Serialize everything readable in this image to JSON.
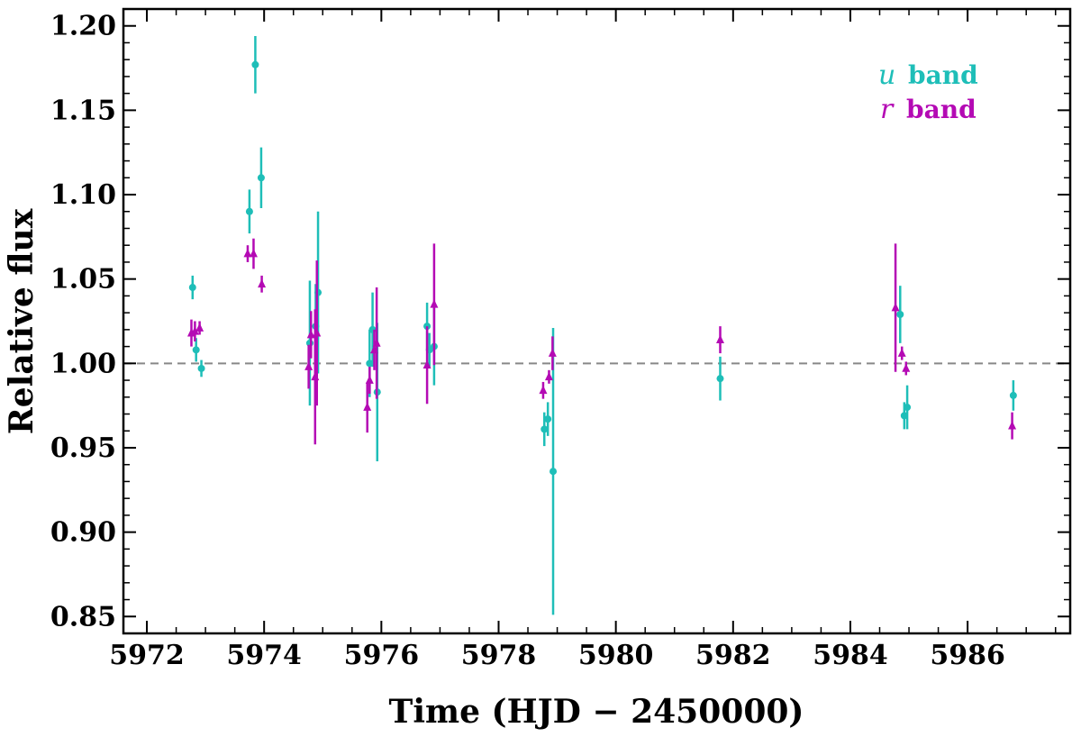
{
  "chart_data": {
    "type": "scatter",
    "xlabel": "Time (HJD − 2450000)",
    "ylabel": "Relative flux",
    "xlim": [
      5971.6,
      5987.75
    ],
    "ylim": [
      0.84,
      1.21
    ],
    "xticks": [
      5972,
      5974,
      5976,
      5978,
      5980,
      5982,
      5984,
      5986
    ],
    "xtick_labels": [
      "5972",
      "5974",
      "5976",
      "5978",
      "5980",
      "5982",
      "5984",
      "5986"
    ],
    "yticks": [
      0.85,
      0.9,
      0.95,
      1.0,
      1.05,
      1.1,
      1.15,
      1.2
    ],
    "ytick_labels": [
      "0.85",
      "0.90",
      "0.95",
      "1.00",
      "1.05",
      "1.10",
      "1.15",
      "1.20"
    ],
    "reference_line": {
      "y": 1.0,
      "style": "dashed",
      "color": "#888888"
    },
    "legend": {
      "position": "top-right"
    },
    "series": [
      {
        "name": "u band",
        "symbol_label": "u",
        "band_label": "band",
        "color": "#1ebeb8",
        "marker": "circle",
        "points": [
          {
            "x": 5972.78,
            "y": 1.045,
            "err": 0.007
          },
          {
            "x": 5972.84,
            "y": 1.008,
            "err": 0.007
          },
          {
            "x": 5972.93,
            "y": 0.997,
            "err": 0.005
          },
          {
            "x": 5973.75,
            "y": 1.09,
            "err": 0.013
          },
          {
            "x": 5973.85,
            "y": 1.177,
            "err": 0.017
          },
          {
            "x": 5973.95,
            "y": 1.11,
            "err": 0.018
          },
          {
            "x": 5974.78,
            "y": 1.012,
            "err": 0.037
          },
          {
            "x": 5974.88,
            "y": 1.022,
            "err": 0.025
          },
          {
            "x": 5974.92,
            "y": 1.042,
            "err": 0.048
          },
          {
            "x": 5975.8,
            "y": 1.0,
            "err": 0.02
          },
          {
            "x": 5975.85,
            "y": 1.02,
            "err": 0.022
          },
          {
            "x": 5975.93,
            "y": 0.983,
            "err": 0.041
          },
          {
            "x": 5976.78,
            "y": 1.022,
            "err": 0.014
          },
          {
            "x": 5976.82,
            "y": 1.008,
            "err": 0.01
          },
          {
            "x": 5976.9,
            "y": 1.01,
            "err": 0.023
          },
          {
            "x": 5978.78,
            "y": 0.961,
            "err": 0.01
          },
          {
            "x": 5978.84,
            "y": 0.967,
            "err": 0.01
          },
          {
            "x": 5978.93,
            "y": 0.936,
            "err": 0.085
          },
          {
            "x": 5981.78,
            "y": 0.991,
            "err": 0.013
          },
          {
            "x": 5984.85,
            "y": 1.029,
            "err": 0.017
          },
          {
            "x": 5984.92,
            "y": 0.969,
            "err": 0.008
          },
          {
            "x": 5984.97,
            "y": 0.974,
            "err": 0.013
          },
          {
            "x": 5986.78,
            "y": 0.981,
            "err": 0.009
          }
        ]
      },
      {
        "name": "r band",
        "symbol_label": "r",
        "band_label": "band",
        "color": "#b40ab4",
        "marker": "triangle",
        "points": [
          {
            "x": 5972.76,
            "y": 1.018,
            "err": 0.008
          },
          {
            "x": 5972.82,
            "y": 1.019,
            "err": 0.006
          },
          {
            "x": 5972.9,
            "y": 1.021,
            "err": 0.004
          },
          {
            "x": 5973.72,
            "y": 1.065,
            "err": 0.005
          },
          {
            "x": 5973.82,
            "y": 1.065,
            "err": 0.009
          },
          {
            "x": 5973.96,
            "y": 1.047,
            "err": 0.005
          },
          {
            "x": 5974.76,
            "y": 0.998,
            "err": 0.013
          },
          {
            "x": 5974.8,
            "y": 1.017,
            "err": 0.014
          },
          {
            "x": 5974.87,
            "y": 0.992,
            "err": 0.04
          },
          {
            "x": 5974.9,
            "y": 1.018,
            "err": 0.043
          },
          {
            "x": 5975.76,
            "y": 0.974,
            "err": 0.015
          },
          {
            "x": 5975.8,
            "y": 0.99,
            "err": 0.008
          },
          {
            "x": 5975.88,
            "y": 1.008,
            "err": 0.012
          },
          {
            "x": 5975.92,
            "y": 1.012,
            "err": 0.033
          },
          {
            "x": 5976.78,
            "y": 0.999,
            "err": 0.023
          },
          {
            "x": 5976.9,
            "y": 1.035,
            "err": 0.036
          },
          {
            "x": 5978.76,
            "y": 0.984,
            "err": 0.005
          },
          {
            "x": 5978.86,
            "y": 0.992,
            "err": 0.004
          },
          {
            "x": 5978.92,
            "y": 1.006,
            "err": 0.01
          },
          {
            "x": 5981.78,
            "y": 1.014,
            "err": 0.008
          },
          {
            "x": 5984.77,
            "y": 1.033,
            "err": 0.038
          },
          {
            "x": 5984.88,
            "y": 1.006,
            "err": 0.004
          },
          {
            "x": 5984.95,
            "y": 0.997,
            "err": 0.004
          },
          {
            "x": 5986.76,
            "y": 0.963,
            "err": 0.008
          }
        ]
      }
    ]
  }
}
